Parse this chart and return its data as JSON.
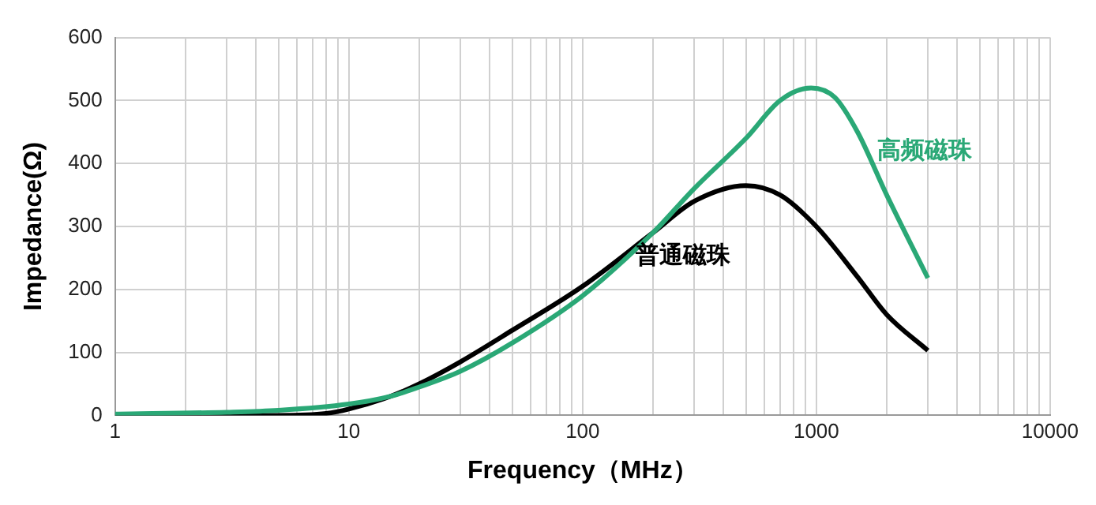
{
  "chart_data": {
    "type": "line",
    "xlabel": "Frequency（MHz）",
    "ylabel": "Impedance(Ω)",
    "log": "x",
    "grid": true,
    "legend": false,
    "marker": "none",
    "line_style": "solid",
    "xlim": [
      1,
      10000
    ],
    "ylim": [
      0,
      600
    ],
    "yticks": [
      0,
      100,
      200,
      300,
      400,
      500,
      600
    ],
    "xticks": [
      1,
      {
        "value": 2,
        "label": null
      },
      {
        "value": 3,
        "label": null
      },
      {
        "value": 4,
        "label": null
      },
      {
        "value": 5,
        "label": null
      },
      {
        "value": 6,
        "label": null
      },
      {
        "value": 7,
        "label": null
      },
      {
        "value": 8,
        "label": null
      },
      {
        "value": 9,
        "label": null
      },
      10,
      {
        "value": 20,
        "label": null
      },
      {
        "value": 30,
        "label": null
      },
      {
        "value": 40,
        "label": null
      },
      {
        "value": 50,
        "label": null
      },
      {
        "value": 60,
        "label": null
      },
      {
        "value": 70,
        "label": null
      },
      {
        "value": 80,
        "label": null
      },
      {
        "value": 90,
        "label": null
      },
      100,
      {
        "value": 200,
        "label": null
      },
      {
        "value": 300,
        "label": null
      },
      {
        "value": 400,
        "label": null
      },
      {
        "value": 500,
        "label": null
      },
      {
        "value": 600,
        "label": null
      },
      {
        "value": 700,
        "label": null
      },
      {
        "value": 800,
        "label": null
      },
      {
        "value": 900,
        "label": null
      },
      1000,
      {
        "value": 2000,
        "label": null
      },
      {
        "value": 3000,
        "label": null
      },
      {
        "value": 4000,
        "label": null
      },
      {
        "value": 5000,
        "label": null
      },
      {
        "value": 6000,
        "label": null
      },
      {
        "value": 7000,
        "label": null
      },
      {
        "value": 8000,
        "label": null
      },
      {
        "value": 9000,
        "label": null
      },
      10000
    ],
    "series": [
      {
        "name": "高频磁珠",
        "color": "#2aa876",
        "x": [
          1,
          3,
          5,
          10,
          15,
          20,
          30,
          50,
          100,
          200,
          300,
          500,
          700,
          950,
          1200,
          1500,
          2000,
          3000
        ],
        "values": [
          2,
          5,
          8,
          18,
          30,
          45,
          70,
          115,
          190,
          290,
          360,
          440,
          500,
          520,
          505,
          450,
          350,
          218
        ]
      },
      {
        "name": "普通磁珠",
        "color": "#000000",
        "x": [
          1,
          5,
          8,
          10,
          15,
          20,
          30,
          50,
          100,
          200,
          300,
          500,
          700,
          1000,
          1500,
          2000,
          3000
        ],
        "values": [
          0,
          0,
          3,
          10,
          30,
          50,
          85,
          135,
          205,
          290,
          340,
          365,
          350,
          300,
          220,
          160,
          103
        ]
      }
    ]
  }
}
